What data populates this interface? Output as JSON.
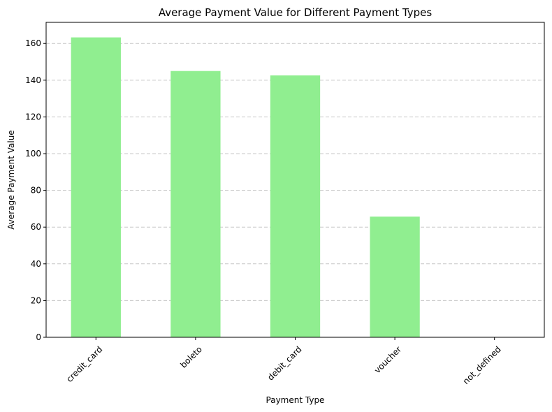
{
  "chart_data": {
    "type": "bar",
    "title": "Average Payment Value for Different Payment Types",
    "xlabel": "Payment Type",
    "ylabel": "Average Payment Value",
    "categories": [
      "credit_card",
      "boleto",
      "debit_card",
      "voucher",
      "not_defined"
    ],
    "values": [
      163.3,
      145.0,
      142.6,
      65.7,
      0
    ],
    "ylim": [
      0,
      171.5
    ],
    "yticks": [
      0,
      20,
      40,
      60,
      80,
      100,
      120,
      140,
      160
    ],
    "grid": "y-dashed",
    "bar_color": "#90ee90",
    "legend": "none"
  }
}
